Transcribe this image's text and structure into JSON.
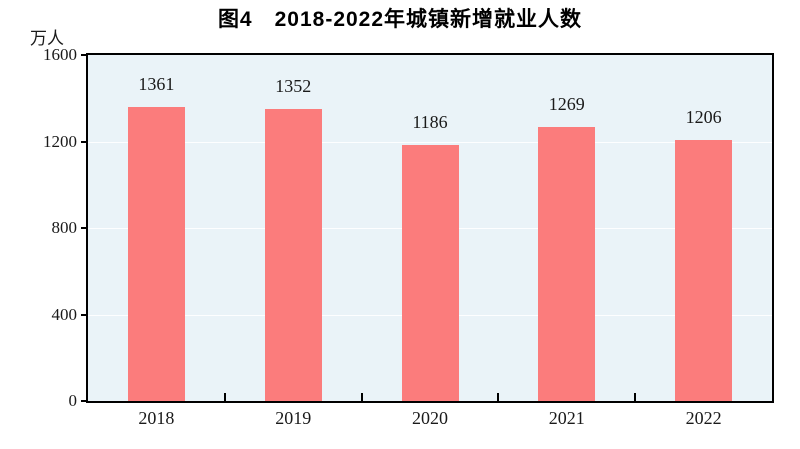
{
  "chart_data": {
    "type": "bar",
    "title": "图4　2018-2022年城镇新增就业人数",
    "unit": "万人",
    "categories": [
      "2018",
      "2019",
      "2020",
      "2021",
      "2022"
    ],
    "values": [
      1361,
      1352,
      1186,
      1269,
      1206
    ],
    "xlabel": "",
    "ylabel": "万人",
    "ylim": [
      0,
      1600
    ],
    "yticks": [
      0,
      400,
      800,
      1200,
      1600
    ],
    "gridlines": {
      "horizontal": [
        400,
        800,
        1200
      ],
      "color": "#FFFFFF",
      "behind_bars": true
    },
    "legend": "none",
    "value_labels_above_bars": true,
    "colors": {
      "bar": "#FB7C7C",
      "plot_background": "#EAF3F8",
      "gridline": "#FFFFFF",
      "axis_frame": "#000000",
      "page_background": "#FFFFFF",
      "text": "#1A1A1A"
    }
  }
}
